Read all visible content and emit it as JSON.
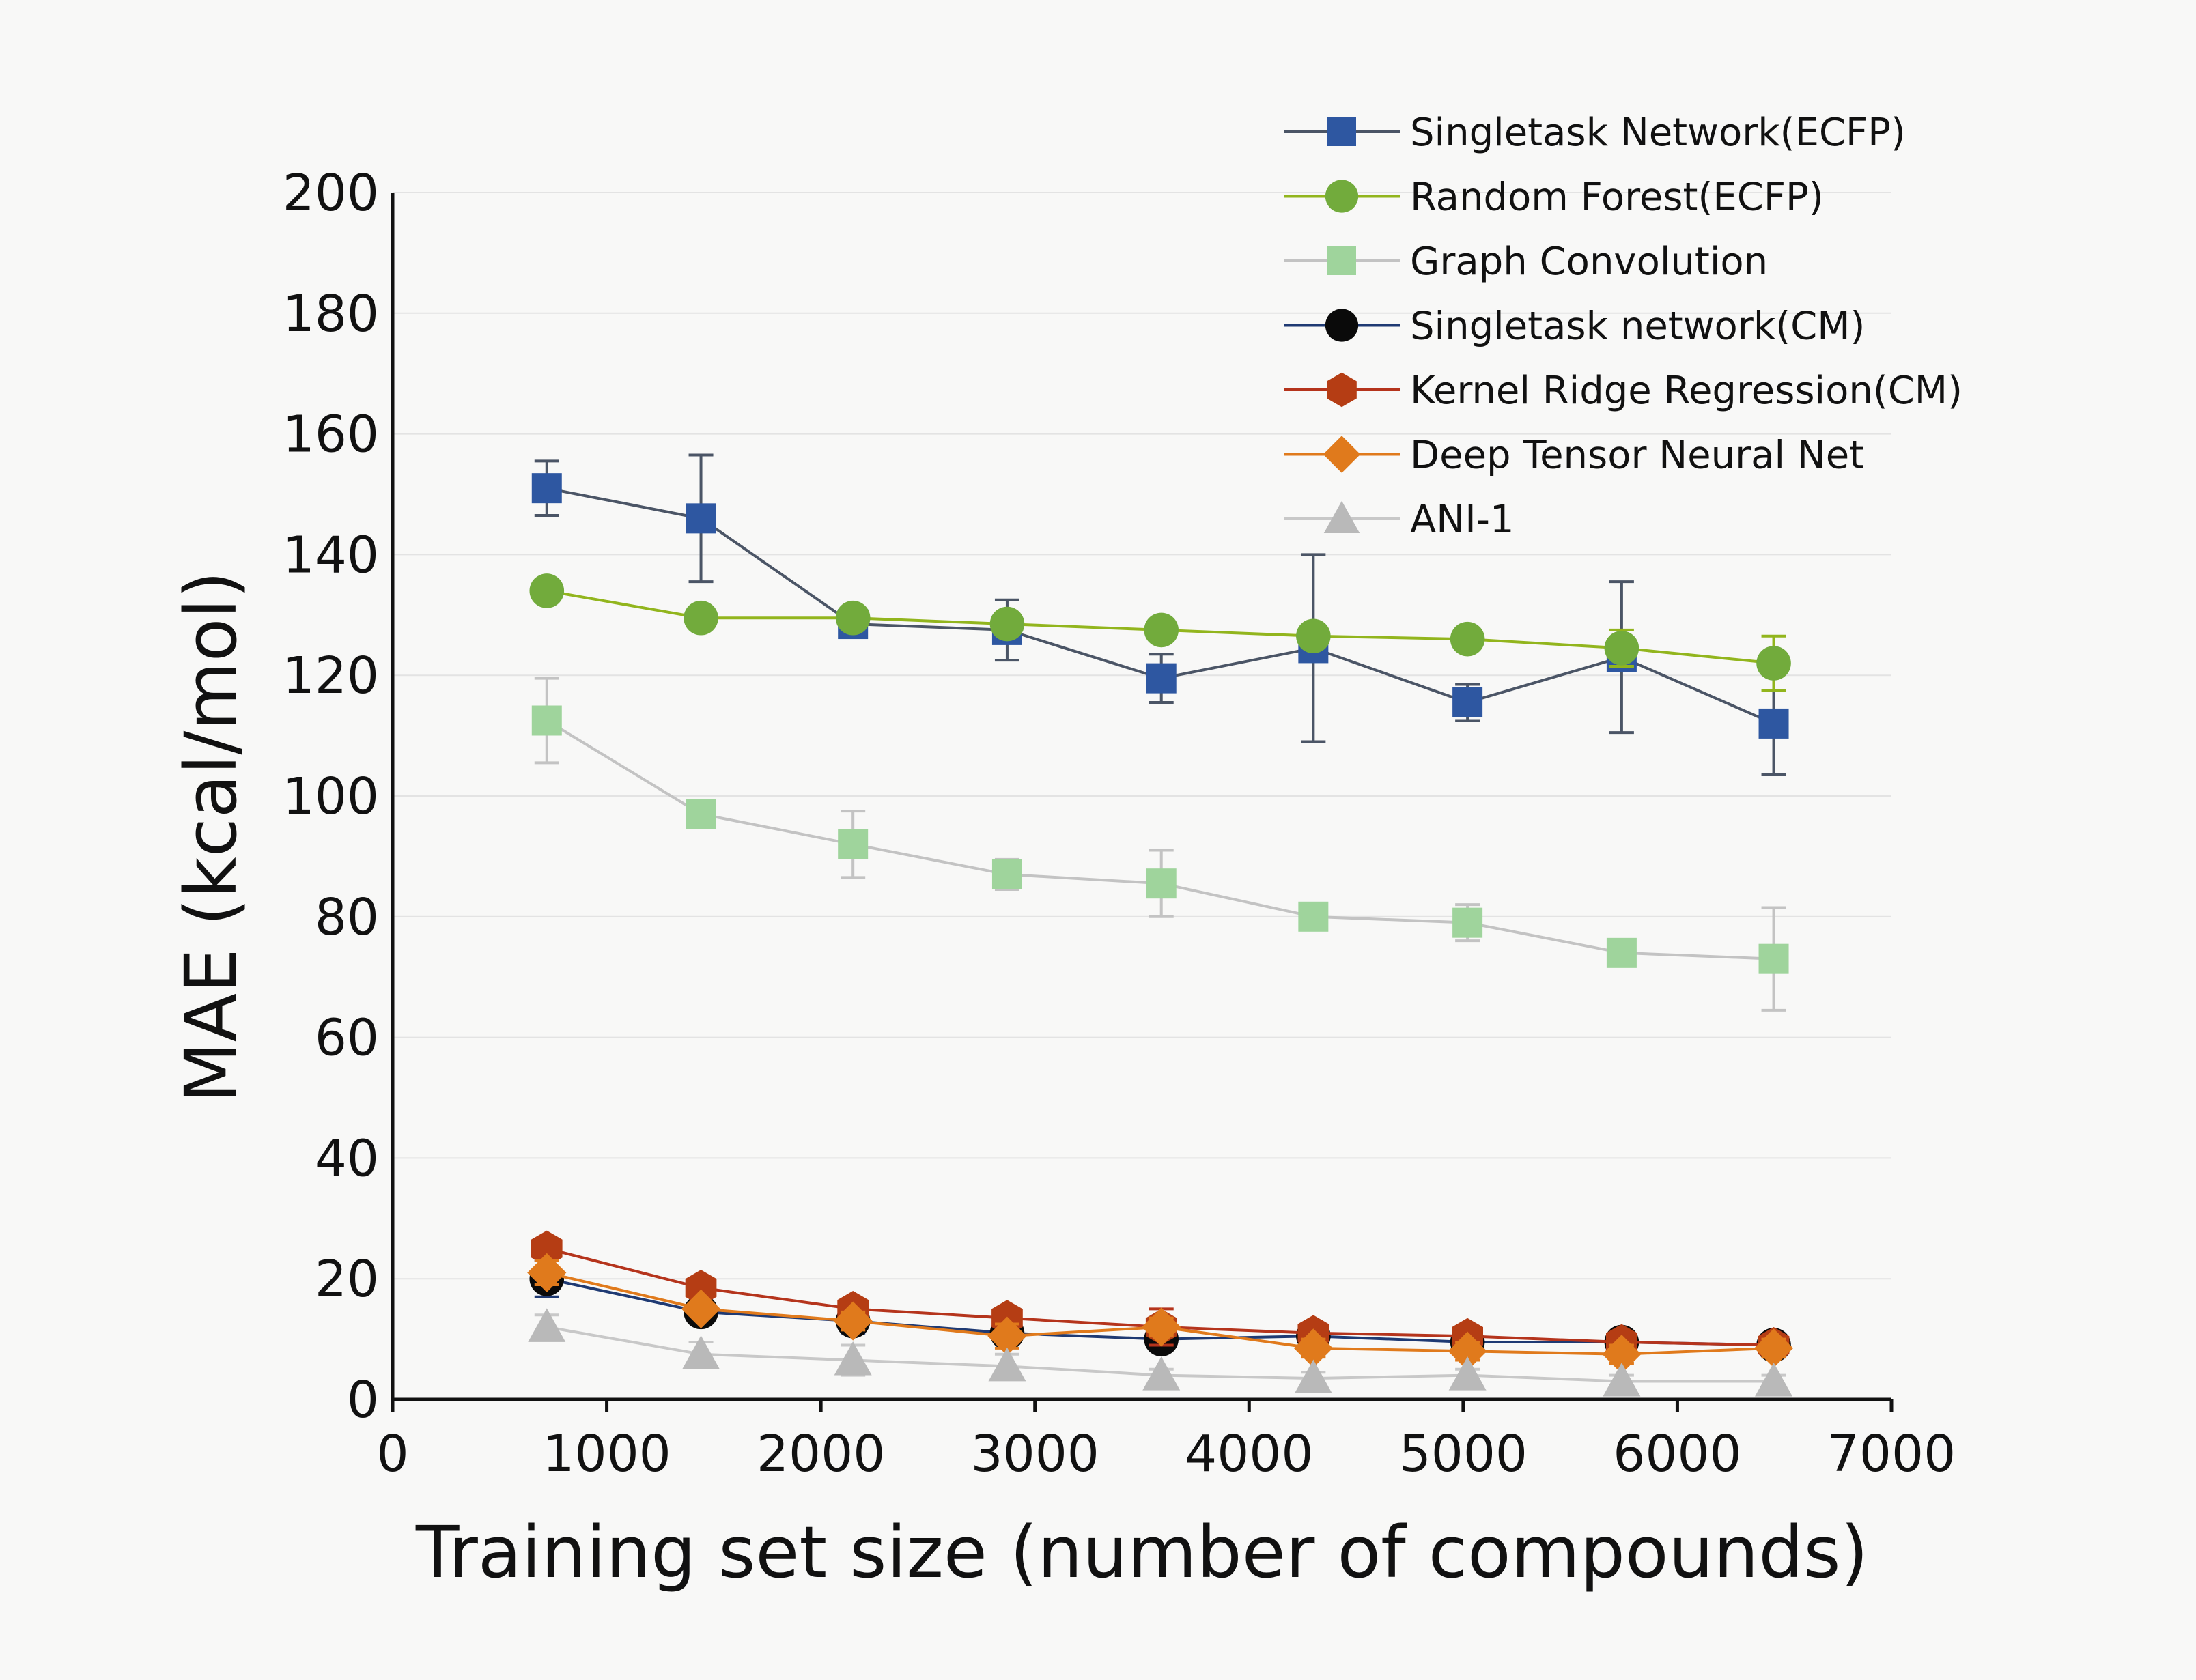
{
  "chart_data": {
    "type": "line",
    "xlabel": "Training set size (number of compounds)",
    "ylabel": "MAE (kcal/mol)",
    "xlim": [
      0,
      7000
    ],
    "ylim": [
      0,
      200
    ],
    "x_ticks": [
      0,
      1000,
      2000,
      3000,
      4000,
      5000,
      6000,
      7000
    ],
    "y_ticks": [
      0,
      20,
      40,
      60,
      80,
      100,
      120,
      140,
      160,
      180,
      200
    ],
    "grid": "horizontal",
    "legend_position": "top-right",
    "x": [
      720,
      1440,
      2150,
      2870,
      3590,
      4300,
      5020,
      5740,
      6450
    ],
    "series": [
      {
        "name": "Singletask Network(ECFP)",
        "marker": "square",
        "line_color": "#4b5566",
        "marker_color": "#2e57a1",
        "values": [
          151,
          146,
          128.5,
          127.5,
          119.5,
          124.5,
          115.5,
          123,
          112
        ],
        "error": [
          4.5,
          10.5,
          1.5,
          5,
          4,
          15.5,
          3,
          12.5,
          8.5
        ]
      },
      {
        "name": "Random Forest(ECFP)",
        "marker": "circle",
        "line_color": "#92b51d",
        "marker_color": "#72ab3c",
        "values": [
          134,
          129.5,
          129.5,
          128.5,
          127.5,
          126.5,
          126,
          124.5,
          122
        ],
        "error": [
          0,
          0,
          0,
          0,
          0,
          0,
          0,
          3,
          4.5
        ]
      },
      {
        "name": "Graph Convolution",
        "marker": "square",
        "line_color": "#c3c3c3",
        "marker_color": "#9fd49c",
        "values": [
          112.5,
          97,
          92,
          87,
          85.5,
          80,
          79,
          74,
          73
        ],
        "error": [
          7,
          2,
          5.5,
          2.5,
          5.5,
          1.5,
          3,
          1,
          8.5
        ]
      },
      {
        "name": "Singletask network(CM)",
        "marker": "circle",
        "line_color": "#1f3a73",
        "marker_color": "#0a0a0a",
        "values": [
          20,
          14.5,
          13,
          11,
          10,
          10.5,
          9.5,
          9.5,
          9
        ],
        "error": [
          3,
          1.5,
          2,
          1.5,
          1.5,
          1.5,
          1.5,
          1.5,
          1.5
        ]
      },
      {
        "name": "Kernel Ridge Regression(CM)",
        "marker": "hexagon",
        "line_color": "#b5341c",
        "marker_color": "#b53d14",
        "values": [
          25,
          18.5,
          15,
          13.5,
          12,
          11,
          10.5,
          9.5,
          9
        ],
        "error": [
          1,
          1,
          1,
          1,
          3,
          1,
          1,
          1,
          1
        ]
      },
      {
        "name": "Deep Tensor Neural Net",
        "marker": "diamond",
        "line_color": "#e07a1c",
        "marker_color": "#e07a1c",
        "values": [
          21,
          15,
          13,
          10.5,
          12,
          8.5,
          8,
          7.5,
          8.5
        ],
        "error": [
          2,
          1,
          1.5,
          2,
          1.5,
          1.5,
          1.5,
          1.5,
          1.5
        ]
      },
      {
        "name": "ANI-1",
        "marker": "triangle",
        "line_color": "#c8c8c8",
        "marker_color": "#b9b9b9",
        "values": [
          12,
          7.5,
          6.5,
          5.5,
          4,
          3.5,
          4,
          3,
          3
        ],
        "error": [
          2,
          2,
          2.5,
          2,
          1,
          1,
          1,
          1,
          1
        ]
      }
    ]
  }
}
